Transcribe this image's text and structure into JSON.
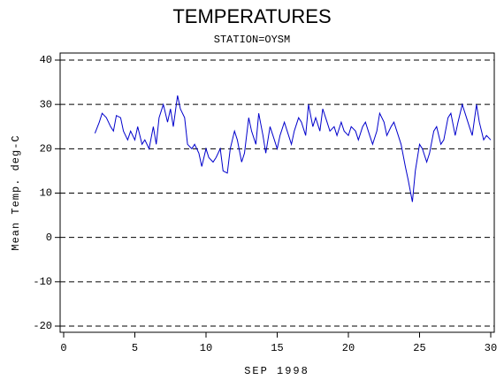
{
  "chart_data": {
    "type": "line",
    "title": "TEMPERATURES",
    "subtitle": "STATION=OYSM",
    "x_label": "SEP 1998",
    "y_label": "Mean Temp. deg-C",
    "xlim": [
      0,
      30
    ],
    "ylim": [
      -20,
      40
    ],
    "xticks": [
      0,
      5,
      10,
      15,
      20,
      25,
      30
    ],
    "yticks": [
      -20,
      -10,
      0,
      10,
      20,
      30,
      40
    ],
    "grid": true,
    "series": [
      {
        "color": "#0000cc",
        "x": [
          2.2,
          2.5,
          2.7,
          3.0,
          3.3,
          3.5,
          3.7,
          4.0,
          4.2,
          4.5,
          4.7,
          5.0,
          5.2,
          5.5,
          5.7,
          6.0,
          6.3,
          6.5,
          6.7,
          7.0,
          7.3,
          7.5,
          7.7,
          8.0,
          8.2,
          8.5,
          8.7,
          9.0,
          9.2,
          9.5,
          9.7,
          10.0,
          10.2,
          10.5,
          10.7,
          11.0,
          11.2,
          11.5,
          11.7,
          12.0,
          12.2,
          12.5,
          12.7,
          13.0,
          13.2,
          13.5,
          13.7,
          14.0,
          14.2,
          14.5,
          14.7,
          15.0,
          15.2,
          15.5,
          15.7,
          16.0,
          16.2,
          16.5,
          16.7,
          17.0,
          17.2,
          17.5,
          17.7,
          18.0,
          18.2,
          18.5,
          18.7,
          19.0,
          19.2,
          19.5,
          19.7,
          20.0,
          20.2,
          20.5,
          20.7,
          21.0,
          21.2,
          21.5,
          21.7,
          22.0,
          22.2,
          22.5,
          22.7,
          23.0,
          23.2,
          23.5,
          23.7,
          24.0,
          24.2,
          24.5,
          24.7,
          25.0,
          25.2,
          25.5,
          25.7,
          26.0,
          26.2,
          26.5,
          26.7,
          27.0,
          27.2,
          27.5,
          27.7,
          28.0,
          28.2,
          28.5,
          28.7,
          29.0,
          29.2,
          29.5,
          29.7,
          30.0
        ],
        "values": [
          23.5,
          26,
          28,
          27,
          25,
          24,
          27.5,
          27,
          24,
          22,
          24,
          22,
          25,
          21,
          22,
          20,
          25,
          21,
          27,
          30,
          26,
          29,
          25,
          32,
          29,
          27,
          21,
          20,
          21,
          19,
          16,
          20,
          18,
          17,
          18,
          20,
          15,
          14.5,
          20,
          24,
          22,
          17,
          19,
          27,
          24,
          21,
          28,
          23,
          19,
          25,
          23,
          20,
          23,
          26,
          24,
          21,
          24,
          27,
          26,
          23,
          30,
          25,
          27,
          24,
          29,
          26,
          24,
          25,
          23,
          26,
          24,
          23,
          25,
          24,
          22,
          25,
          26,
          23,
          21,
          24,
          28,
          26,
          23,
          25,
          26,
          23,
          21,
          16,
          13,
          8,
          15,
          21,
          20,
          17,
          19,
          24,
          25,
          21,
          22,
          27,
          28,
          23,
          26,
          30,
          28,
          25,
          23,
          30,
          26,
          22,
          23,
          22
        ]
      }
    ]
  }
}
